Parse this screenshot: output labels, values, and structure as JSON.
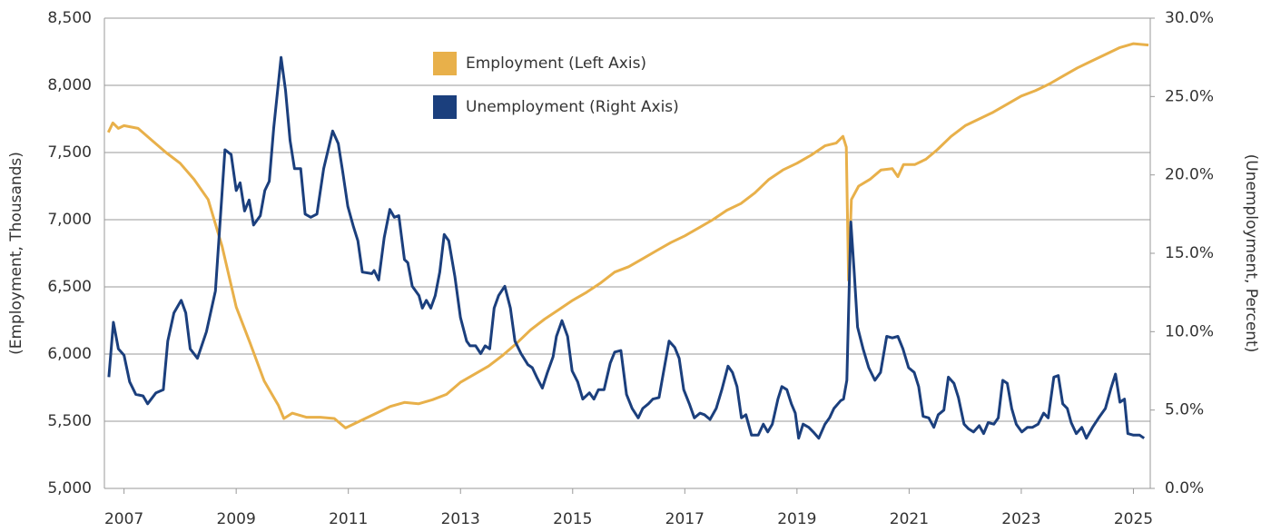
{
  "chart_data": {
    "type": "line",
    "ylabel": "(Employment, Thousands)",
    "y2label": "(Unemployment, Percent)",
    "xlim": [
      2006.65,
      2025.3
    ],
    "xticks": [
      2007,
      2009,
      2011,
      2013,
      2015,
      2017,
      2019,
      2021,
      2023,
      2025
    ],
    "ylim": [
      5000,
      8500
    ],
    "yticks": [
      {
        "value": 5000,
        "label": "5,000"
      },
      {
        "value": 5500,
        "label": "5,500"
      },
      {
        "value": 6000,
        "label": "6,000"
      },
      {
        "value": 6500,
        "label": "6,500"
      },
      {
        "value": 7000,
        "label": "7,000"
      },
      {
        "value": 7500,
        "label": "7,500"
      },
      {
        "value": 8000,
        "label": "8,000"
      },
      {
        "value": 8500,
        "label": "8,500"
      }
    ],
    "y2lim": [
      0,
      30
    ],
    "y2ticks": [
      {
        "value": 0,
        "label": "0.0%"
      },
      {
        "value": 5,
        "label": "5.0%"
      },
      {
        "value": 10,
        "label": "10.0%"
      },
      {
        "value": 15,
        "label": "15.0%"
      },
      {
        "value": 20,
        "label": "20.0%"
      },
      {
        "value": 25,
        "label": "25.0%"
      },
      {
        "value": 30,
        "label": "30.0%"
      }
    ],
    "grid": true,
    "series": [
      {
        "name": "Employment (Left Axis)",
        "color": "#e8b04a",
        "axis": "y",
        "x": [
          2006.72,
          2006.8,
          2006.9,
          2007.0,
          2007.25,
          2007.5,
          2007.75,
          2008.0,
          2008.25,
          2008.5,
          2008.75,
          2009.0,
          2009.25,
          2009.5,
          2009.75,
          2009.85,
          2010.0,
          2010.25,
          2010.5,
          2010.75,
          2010.95,
          2011.25,
          2011.5,
          2011.75,
          2012.0,
          2012.25,
          2012.5,
          2012.75,
          2013.0,
          2013.25,
          2013.5,
          2013.75,
          2014.0,
          2014.25,
          2014.5,
          2014.75,
          2015.0,
          2015.25,
          2015.5,
          2015.75,
          2016.0,
          2016.25,
          2016.5,
          2016.75,
          2017.0,
          2017.25,
          2017.5,
          2017.75,
          2018.0,
          2018.25,
          2018.5,
          2018.75,
          2019.0,
          2019.25,
          2019.5,
          2019.7,
          2019.82,
          2019.88,
          2019.92,
          2019.97,
          2020.1,
          2020.3,
          2020.5,
          2020.7,
          2020.8,
          2020.9,
          2021.1,
          2021.3,
          2021.5,
          2021.75,
          2022.0,
          2022.25,
          2022.5,
          2022.75,
          2023.0,
          2023.25,
          2023.5,
          2023.75,
          2024.0,
          2024.25,
          2024.5,
          2024.75,
          2025.0,
          2025.27
        ],
        "values": [
          7650,
          7720,
          7680,
          7700,
          7680,
          7590,
          7500,
          7420,
          7300,
          7150,
          6800,
          6350,
          6080,
          5800,
          5620,
          5520,
          5560,
          5530,
          5530,
          5520,
          5450,
          5510,
          5560,
          5610,
          5640,
          5630,
          5660,
          5700,
          5790,
          5850,
          5910,
          5990,
          6080,
          6180,
          6260,
          6330,
          6400,
          6460,
          6530,
          6610,
          6650,
          6710,
          6770,
          6830,
          6880,
          6940,
          7000,
          7070,
          7120,
          7200,
          7300,
          7370,
          7420,
          7480,
          7550,
          7570,
          7620,
          7540,
          6550,
          7150,
          7250,
          7300,
          7370,
          7380,
          7320,
          7410,
          7410,
          7450,
          7520,
          7620,
          7700,
          7750,
          7800,
          7860,
          7920,
          7960,
          8010,
          8070,
          8130,
          8180,
          8230,
          8280,
          8310,
          8300
        ]
      },
      {
        "name": "Unemployment (Right Axis)",
        "color": "#1b3f7d",
        "axis": "y2",
        "x": [
          2006.73,
          2006.81,
          2006.9,
          2007.0,
          2007.1,
          2007.21,
          2007.34,
          2007.42,
          2007.57,
          2007.7,
          2007.78,
          2007.89,
          2008.02,
          2008.1,
          2008.18,
          2008.31,
          2008.47,
          2008.63,
          2008.8,
          2008.91,
          2009.0,
          2009.07,
          2009.15,
          2009.23,
          2009.31,
          2009.43,
          2009.51,
          2009.59,
          2009.67,
          2009.8,
          2009.88,
          2009.96,
          2010.04,
          2010.15,
          2010.23,
          2010.33,
          2010.44,
          2010.56,
          2010.72,
          2010.82,
          2010.9,
          2010.99,
          2011.09,
          2011.17,
          2011.25,
          2011.42,
          2011.46,
          2011.54,
          2011.64,
          2011.74,
          2011.82,
          2011.9,
          2012.0,
          2012.06,
          2012.14,
          2012.26,
          2012.32,
          2012.39,
          2012.47,
          2012.55,
          2012.63,
          2012.71,
          2012.79,
          2012.9,
          2013.0,
          2013.11,
          2013.17,
          2013.27,
          2013.36,
          2013.44,
          2013.52,
          2013.6,
          2013.68,
          2013.79,
          2013.89,
          2013.97,
          2014.08,
          2014.2,
          2014.28,
          2014.36,
          2014.46,
          2014.55,
          2014.65,
          2014.71,
          2014.81,
          2014.91,
          2014.99,
          2015.09,
          2015.18,
          2015.3,
          2015.38,
          2015.46,
          2015.56,
          2015.67,
          2015.75,
          2015.86,
          2015.96,
          2016.06,
          2016.17,
          2016.25,
          2016.35,
          2016.43,
          2016.54,
          2016.62,
          2016.72,
          2016.82,
          2016.9,
          2016.98,
          2017.08,
          2017.17,
          2017.27,
          2017.35,
          2017.45,
          2017.56,
          2017.66,
          2017.77,
          2017.85,
          2017.93,
          2018.01,
          2018.09,
          2018.19,
          2018.31,
          2018.4,
          2018.48,
          2018.56,
          2018.66,
          2018.73,
          2018.82,
          2018.9,
          2018.97,
          2019.03,
          2019.11,
          2019.21,
          2019.29,
          2019.39,
          2019.5,
          2019.58,
          2019.66,
          2019.78,
          2019.83,
          2019.89,
          2019.96,
          2020.02,
          2020.08,
          2020.18,
          2020.28,
          2020.39,
          2020.49,
          2020.6,
          2020.7,
          2020.8,
          2020.89,
          2020.99,
          2021.09,
          2021.17,
          2021.25,
          2021.35,
          2021.44,
          2021.52,
          2021.62,
          2021.7,
          2021.8,
          2021.88,
          2021.98,
          2022.06,
          2022.15,
          2022.25,
          2022.33,
          2022.41,
          2022.51,
          2022.59,
          2022.67,
          2022.75,
          2022.83,
          2022.91,
          2023.01,
          2023.11,
          2023.2,
          2023.3,
          2023.4,
          2023.48,
          2023.58,
          2023.66,
          2023.74,
          2023.82,
          2023.89,
          2023.98,
          2024.08,
          2024.16,
          2024.27,
          2024.38,
          2024.5,
          2024.6,
          2024.68,
          2024.76,
          2024.84,
          2024.9,
          2025.0,
          2025.11,
          2025.19
        ],
        "values": [
          7.1,
          10.6,
          8.9,
          8.5,
          6.8,
          6.0,
          5.9,
          5.4,
          6.1,
          6.3,
          9.4,
          11.2,
          12.0,
          11.2,
          8.9,
          8.3,
          10.0,
          12.6,
          21.6,
          21.3,
          19.0,
          19.5,
          17.7,
          18.4,
          16.8,
          17.4,
          19.0,
          19.6,
          23.0,
          27.5,
          25.4,
          22.2,
          20.4,
          20.4,
          17.5,
          17.3,
          17.5,
          20.4,
          22.8,
          22.0,
          20.2,
          18.0,
          16.7,
          15.8,
          13.8,
          13.7,
          13.9,
          13.3,
          16.0,
          17.8,
          17.3,
          17.4,
          14.6,
          14.4,
          12.9,
          12.3,
          11.5,
          12.0,
          11.5,
          12.3,
          13.8,
          16.2,
          15.8,
          13.5,
          10.9,
          9.4,
          9.1,
          9.1,
          8.6,
          9.1,
          8.9,
          11.5,
          12.3,
          12.9,
          11.5,
          9.4,
          8.6,
          7.9,
          7.7,
          7.1,
          6.4,
          7.4,
          8.4,
          9.7,
          10.7,
          9.7,
          7.5,
          6.8,
          5.7,
          6.1,
          5.7,
          6.3,
          6.3,
          8.0,
          8.7,
          8.8,
          6.0,
          5.1,
          4.5,
          5.1,
          5.4,
          5.7,
          5.8,
          7.4,
          9.4,
          9.0,
          8.3,
          6.3,
          5.4,
          4.5,
          4.8,
          4.7,
          4.4,
          5.1,
          6.3,
          7.8,
          7.4,
          6.5,
          4.5,
          4.7,
          3.4,
          3.4,
          4.1,
          3.6,
          4.1,
          5.7,
          6.5,
          6.3,
          5.4,
          4.8,
          3.2,
          4.1,
          3.9,
          3.6,
          3.2,
          4.1,
          4.5,
          5.1,
          5.6,
          5.7,
          6.9,
          17.0,
          13.8,
          10.3,
          8.9,
          7.7,
          6.9,
          7.4,
          9.7,
          9.6,
          9.7,
          8.9,
          7.7,
          7.4,
          6.5,
          4.6,
          4.5,
          3.9,
          4.7,
          5.0,
          7.1,
          6.7,
          5.8,
          4.1,
          3.8,
          3.6,
          4.0,
          3.5,
          4.2,
          4.1,
          4.5,
          6.9,
          6.7,
          5.1,
          4.1,
          3.6,
          3.9,
          3.9,
          4.1,
          4.8,
          4.5,
          7.1,
          7.2,
          5.4,
          5.1,
          4.2,
          3.5,
          3.9,
          3.2,
          3.9,
          4.5,
          5.1,
          6.4,
          7.3,
          5.5,
          5.7,
          3.5,
          3.4,
          3.4,
          3.2
        ]
      }
    ]
  }
}
